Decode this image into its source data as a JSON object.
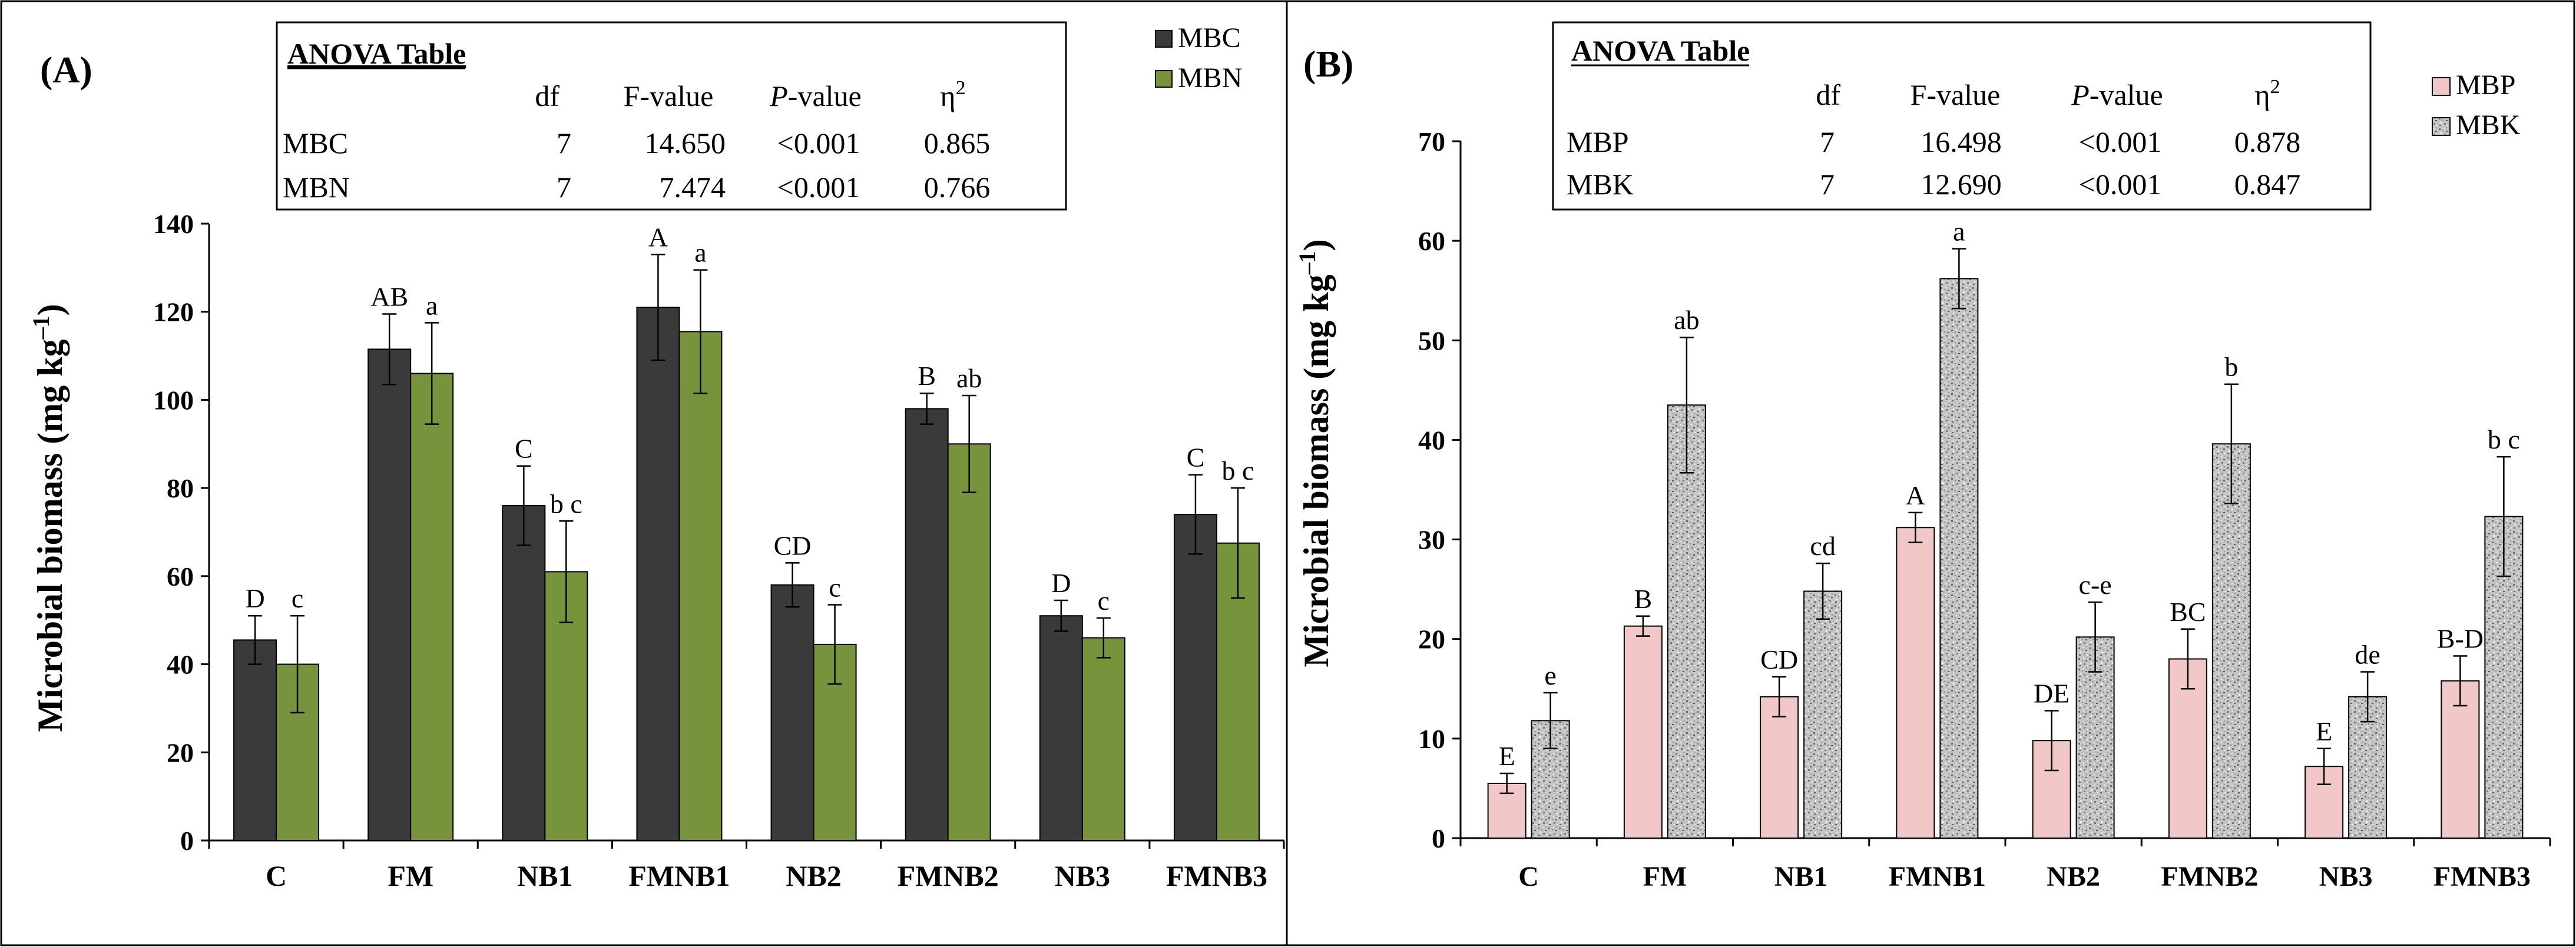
{
  "chart_data": [
    {
      "type": "bar",
      "panel_label": "(A)",
      "categories": [
        "C",
        "FM",
        "NB1",
        "FMNB1",
        "NB2",
        "FMNB2",
        "NB3",
        "FMNB3"
      ],
      "ylabel": "Microbial biomass  (mg kg",
      "ylabel_sup": "–1",
      "ylabel_end": ")",
      "ylim": [
        0,
        140
      ],
      "yticks": [
        0,
        20,
        40,
        60,
        80,
        100,
        120,
        140
      ],
      "legend_position": "top-right",
      "series": [
        {
          "name": "MBC",
          "color": "#3a3a3a",
          "pattern": "solid",
          "values": [
            45.5,
            111.5,
            76,
            121,
            58,
            98,
            51,
            74
          ],
          "errors": [
            5.5,
            8,
            9,
            12,
            5,
            3.5,
            3.5,
            9
          ],
          "letters": [
            "D",
            "AB",
            "C",
            "A",
            "CD",
            "B",
            "D",
            "C"
          ]
        },
        {
          "name": "MBN",
          "color": "#77933c",
          "pattern": "solid",
          "values": [
            40,
            106,
            61,
            115.5,
            44.5,
            90,
            46,
            67.5
          ],
          "errors": [
            11,
            11.5,
            11.5,
            14,
            9,
            11,
            4.5,
            12.5
          ],
          "letters": [
            "c",
            "a",
            "b c",
            "a",
            "c",
            "ab",
            "c",
            "b c"
          ]
        }
      ],
      "anova": {
        "title": "ANOVA Table",
        "headers": [
          "df",
          "F-value",
          "P",
          "-value",
          "η",
          "2"
        ],
        "rows": [
          {
            "name": "MBC",
            "df": "7",
            "f": "14.650",
            "p": "<0.001",
            "eta": "0.865"
          },
          {
            "name": "MBN",
            "df": "7",
            "f": "7.474",
            "p": "<0.001",
            "eta": "0.766"
          }
        ]
      }
    },
    {
      "type": "bar",
      "panel_label": "(B)",
      "categories": [
        "C",
        "FM",
        "NB1",
        "FMNB1",
        "NB2",
        "FMNB2",
        "NB3",
        "FMNB3"
      ],
      "ylabel": "Microbial biomass (mg kg",
      "ylabel_sup": "–1",
      "ylabel_end": ")",
      "ylim": [
        0,
        70
      ],
      "yticks": [
        0,
        10,
        20,
        30,
        40,
        50,
        60,
        70
      ],
      "legend_position": "top-right",
      "series": [
        {
          "name": "MBP",
          "color": "#f2c7c7",
          "pattern": "solid",
          "values": [
            5.5,
            21.3,
            14.2,
            31.2,
            9.8,
            18,
            7.2,
            15.8
          ],
          "errors": [
            1,
            1,
            2,
            1.5,
            3,
            3,
            1.8,
            2.5
          ],
          "letters": [
            "E",
            "B",
            "CD",
            "A",
            "DE",
            "BC",
            "E",
            "B-D"
          ]
        },
        {
          "name": "MBK",
          "color": "#bdbdbd",
          "pattern": "granite",
          "values": [
            11.8,
            43.5,
            24.8,
            56.2,
            20.2,
            39.6,
            14.2,
            32.3
          ],
          "errors": [
            2.8,
            6.8,
            2.8,
            3,
            3.5,
            6,
            2.5,
            6
          ],
          "letters": [
            "e",
            "ab",
            "cd",
            "a",
            "c-e",
            "b",
            "de",
            "b c"
          ]
        }
      ],
      "anova": {
        "title": "ANOVA Table",
        "headers": [
          "df",
          "F-value",
          "P",
          "-value",
          "η",
          "2"
        ],
        "rows": [
          {
            "name": "MBP",
            "df": "7",
            "f": "16.498",
            "p": "<0.001",
            "eta": "0.878"
          },
          {
            "name": "MBK",
            "df": "7",
            "f": "12.690",
            "p": "<0.001",
            "eta": "0.847"
          }
        ]
      }
    }
  ]
}
